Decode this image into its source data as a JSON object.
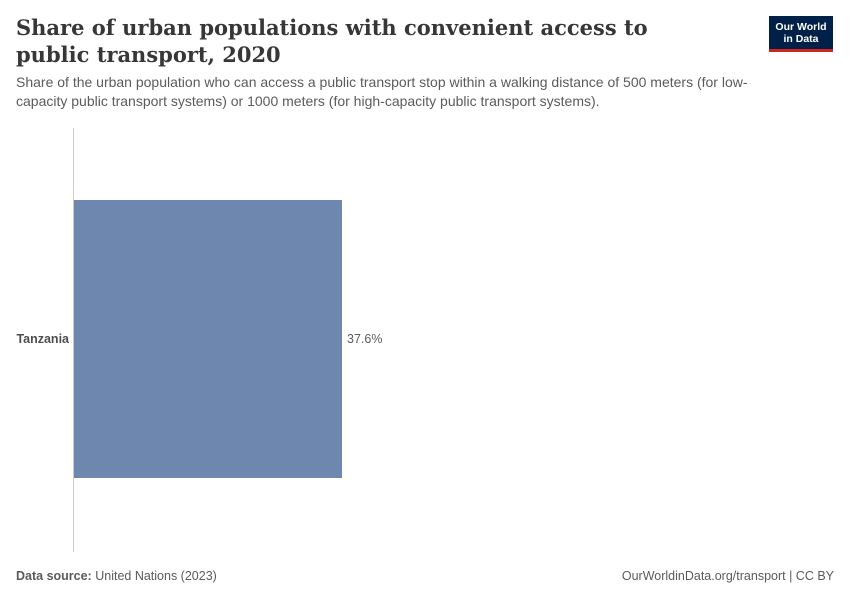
{
  "header": {
    "title": "Share of urban populations with convenient access to public transport, 2020",
    "subtitle": "Share of the urban population who can access a public transport stop within a walking distance of 500 meters (for low-capacity public transport systems) or 1000 meters (for high-capacity public transport systems).",
    "logo_line1": "Our World",
    "logo_line2": "in Data"
  },
  "footer": {
    "source_label": "Data source:",
    "source_value": "United Nations (2023)",
    "credit": "OurWorldinData.org/transport | CC BY"
  },
  "colors": {
    "bar": "#6e87ae",
    "axis": "#cccccc",
    "logo_bg": "#002147",
    "logo_accent": "#ce261e"
  },
  "chart_data": {
    "type": "bar",
    "orientation": "horizontal",
    "categories": [
      "Tanzania"
    ],
    "values": [
      37.6
    ],
    "value_labels": [
      "37.6%"
    ],
    "unit": "%",
    "xlim": [
      0,
      100
    ],
    "grid": false,
    "legend": "none"
  }
}
